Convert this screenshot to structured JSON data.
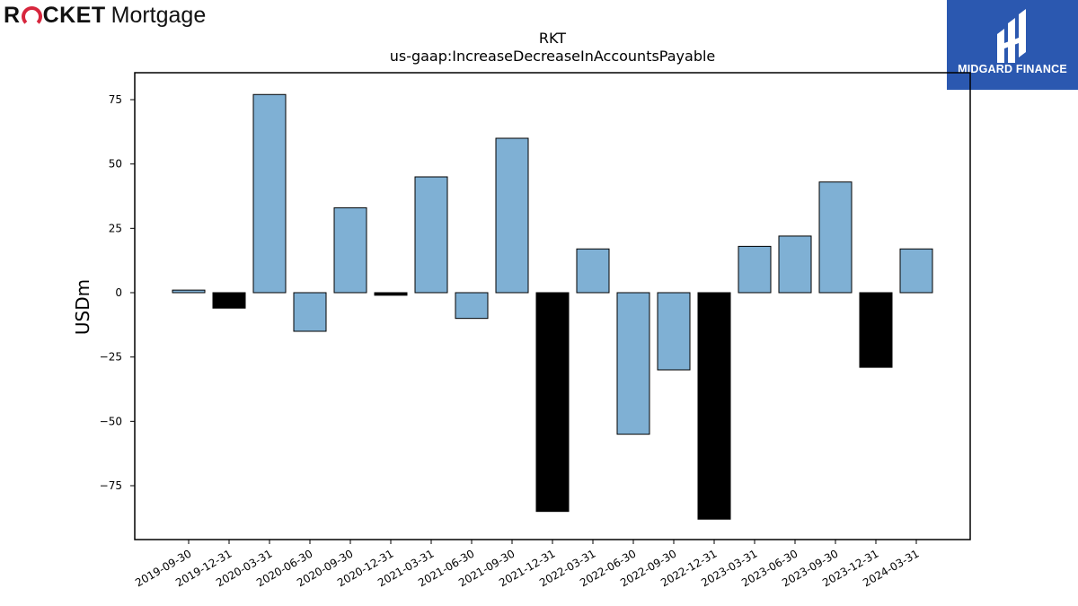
{
  "branding": {
    "left_logo_word1": "R",
    "left_logo_word1_rest": "CKET",
    "left_logo_word2": "Mortgage",
    "right_logo_name": "MIDGARD FINANCE"
  },
  "colors": {
    "positive_bar": "#7fb0d4",
    "negative_bar": "#000000",
    "right_logo_bg": "#2b58b0"
  },
  "chart_data": {
    "type": "bar",
    "title": "RKT",
    "subtitle": "us-gaap:IncreaseDecreaseInAccountsPayable",
    "xlabel": "",
    "ylabel": "USDm",
    "ylim": [
      -95,
      85
    ],
    "yticks": [
      -75,
      -50,
      -25,
      0,
      25,
      50,
      75
    ],
    "ytick_labels": [
      "−75",
      "−50",
      "−25",
      "0",
      "25",
      "50",
      "75"
    ],
    "grid": false,
    "categories": [
      "2019-09-30",
      "2019-12-31",
      "2020-03-31",
      "2020-06-30",
      "2020-09-30",
      "2020-12-31",
      "2021-03-31",
      "2021-06-30",
      "2021-09-30",
      "2021-12-31",
      "2022-03-31",
      "2022-06-30",
      "2022-09-30",
      "2022-12-31",
      "2023-03-31",
      "2023-06-30",
      "2023-09-30",
      "2023-12-31",
      "2024-03-31"
    ],
    "values": [
      1,
      -6,
      77,
      -15,
      33,
      -1,
      45,
      -10,
      60,
      -85,
      17,
      -55,
      -30,
      -88,
      18,
      22,
      43,
      -29,
      17
    ],
    "bar_colors": [
      "blue",
      "black",
      "blue",
      "blue",
      "blue",
      "black",
      "blue",
      "blue",
      "blue",
      "black",
      "blue",
      "blue",
      "blue",
      "black",
      "blue",
      "blue",
      "blue",
      "black",
      "blue"
    ]
  }
}
